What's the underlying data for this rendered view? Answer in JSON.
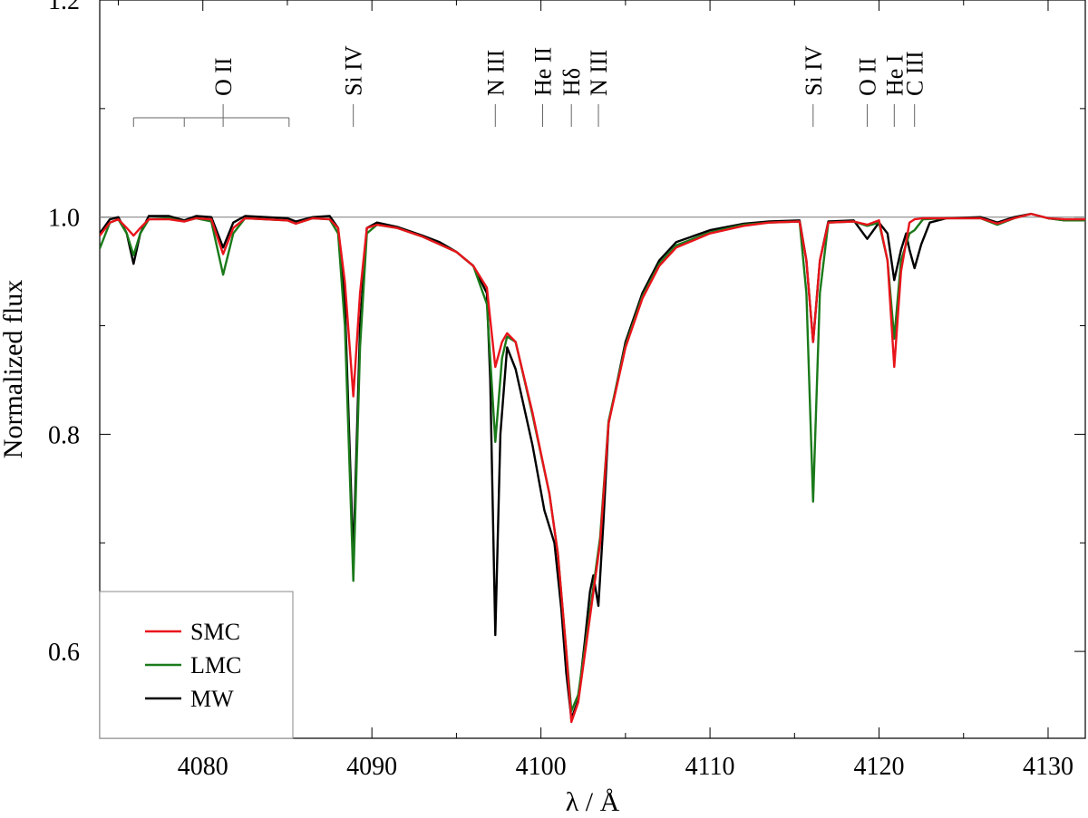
{
  "chart_data": {
    "type": "line",
    "title": "",
    "xlabel": "λ / Å",
    "ylabel": "Normalized flux",
    "xlim": [
      4073.9,
      4132.2
    ],
    "ylim": [
      0.52,
      1.2
    ],
    "xticks": [
      4080,
      4090,
      4100,
      4110,
      4120,
      4130
    ],
    "xtick_labels": [
      "4080",
      "4090",
      "4100",
      "4110",
      "4120",
      "4130"
    ],
    "yticks": [
      0.6,
      0.8,
      1.0,
      1.2
    ],
    "ytick_labels": [
      "0.6",
      "0.8",
      "1.0",
      "1.2"
    ],
    "reference_line": 1.0,
    "grid": false,
    "legend_position": "bottom-left",
    "line_labels": [
      {
        "text": "O II",
        "x": [
          4075.9,
          4078.9,
          4081.2,
          4085.1
        ],
        "group": true
      },
      {
        "text": "Si IV",
        "x": [
          4088.9
        ]
      },
      {
        "text": "N III",
        "x": [
          4097.3
        ]
      },
      {
        "text": "He II",
        "x": [
          4100.1
        ]
      },
      {
        "text": "Hδ",
        "x": [
          4101.8
        ]
      },
      {
        "text": "N III",
        "x": [
          4103.4
        ]
      },
      {
        "text": "Si IV",
        "x": [
          4116.1
        ]
      },
      {
        "text": "O II",
        "x": [
          4119.3
        ]
      },
      {
        "text": "He I",
        "x": [
          4120.9
        ]
      },
      {
        "text": "C III",
        "x": [
          4122.1
        ]
      }
    ],
    "series": [
      {
        "name": "SMC",
        "color": "#e8141b",
        "x": [
          4073.9,
          4074.5,
          4075.0,
          4075.5,
          4075.9,
          4076.3,
          4076.8,
          4078.0,
          4078.9,
          4079.6,
          4080.5,
          4081.2,
          4081.8,
          4082.5,
          4085.0,
          4085.5,
          4086.5,
          4087.5,
          4088.0,
          4088.4,
          4088.9,
          4089.3,
          4089.7,
          4090.3,
          4091.5,
          4093.0,
          4094.0,
          4095.0,
          4096.0,
          4096.8,
          4097.3,
          4097.7,
          4098.0,
          4098.5,
          4099.5,
          4100.5,
          4101.0,
          4101.5,
          4101.8,
          4102.2,
          4102.8,
          4103.5,
          4104.0,
          4105.0,
          4106.0,
          4107.0,
          4108.0,
          4110.0,
          4112.0,
          4113.5,
          4115.3,
          4115.7,
          4116.1,
          4116.5,
          4117.0,
          4118.5,
          4119.3,
          4120.0,
          4120.5,
          4120.9,
          4121.3,
          4121.8,
          4122.1,
          4122.6,
          4124.0,
          4126.0,
          4127.0,
          4128.0,
          4129.0,
          4130.0,
          4131.0,
          4132.2
        ],
        "values": [
          0.983,
          0.995,
          0.998,
          0.99,
          0.983,
          0.99,
          0.998,
          0.998,
          0.996,
          0.999,
          0.998,
          0.966,
          0.99,
          0.999,
          0.997,
          0.994,
          0.999,
          0.998,
          0.99,
          0.94,
          0.835,
          0.93,
          0.99,
          0.993,
          0.99,
          0.982,
          0.975,
          0.968,
          0.955,
          0.935,
          0.862,
          0.885,
          0.893,
          0.885,
          0.82,
          0.745,
          0.69,
          0.6,
          0.535,
          0.553,
          0.62,
          0.7,
          0.81,
          0.88,
          0.925,
          0.955,
          0.972,
          0.985,
          0.992,
          0.995,
          0.996,
          0.96,
          0.885,
          0.96,
          0.995,
          0.996,
          0.993,
          0.997,
          0.96,
          0.862,
          0.95,
          0.995,
          0.998,
          0.999,
          0.999,
          0.999,
          0.994,
          0.999,
          1.003,
          0.999,
          0.998,
          0.998
        ]
      },
      {
        "name": "LMC",
        "color": "#1a7a1a",
        "x": [
          4073.9,
          4074.5,
          4075.0,
          4075.5,
          4075.9,
          4076.3,
          4076.8,
          4078.0,
          4078.9,
          4079.6,
          4080.5,
          4081.2,
          4081.8,
          4082.5,
          4085.0,
          4085.5,
          4086.5,
          4087.5,
          4088.0,
          4088.4,
          4088.9,
          4089.3,
          4089.7,
          4090.3,
          4091.5,
          4093.0,
          4094.0,
          4095.0,
          4096.0,
          4096.8,
          4097.3,
          4097.7,
          4098.0,
          4098.5,
          4099.5,
          4100.5,
          4101.0,
          4101.5,
          4101.8,
          4102.2,
          4102.8,
          4103.5,
          4104.0,
          4105.0,
          4106.0,
          4107.0,
          4108.0,
          4110.0,
          4112.0,
          4113.5,
          4115.3,
          4115.7,
          4116.1,
          4116.5,
          4117.0,
          4118.5,
          4119.3,
          4120.0,
          4120.5,
          4120.9,
          4121.3,
          4121.8,
          4122.1,
          4122.6,
          4124.0,
          4126.0,
          4127.0,
          4128.0,
          4129.0,
          4130.0,
          4131.0,
          4132.2
        ],
        "values": [
          0.971,
          0.995,
          0.998,
          0.985,
          0.965,
          0.985,
          0.998,
          0.999,
          0.996,
          0.999,
          0.996,
          0.947,
          0.985,
          0.999,
          0.997,
          0.994,
          0.999,
          0.998,
          0.985,
          0.9,
          0.665,
          0.88,
          0.985,
          0.993,
          0.99,
          0.982,
          0.975,
          0.968,
          0.955,
          0.92,
          0.793,
          0.87,
          0.89,
          0.885,
          0.818,
          0.745,
          0.69,
          0.6,
          0.545,
          0.56,
          0.625,
          0.705,
          0.812,
          0.882,
          0.927,
          0.957,
          0.974,
          0.986,
          0.993,
          0.995,
          0.996,
          0.93,
          0.738,
          0.93,
          0.995,
          0.996,
          0.992,
          0.995,
          0.96,
          0.888,
          0.96,
          0.985,
          0.988,
          0.998,
          0.999,
          0.999,
          0.993,
          0.999,
          1.003,
          0.999,
          0.997,
          0.997
        ]
      },
      {
        "name": "MW",
        "color": "#000000",
        "x": [
          4073.9,
          4074.5,
          4075.0,
          4075.5,
          4075.9,
          4076.3,
          4076.8,
          4078.0,
          4078.9,
          4079.6,
          4080.5,
          4081.2,
          4081.8,
          4082.5,
          4085.0,
          4085.5,
          4086.5,
          4087.5,
          4088.0,
          4088.4,
          4088.9,
          4089.3,
          4089.7,
          4090.3,
          4091.5,
          4093.0,
          4094.0,
          4095.0,
          4096.0,
          4096.8,
          4097.0,
          4097.3,
          4097.6,
          4098.0,
          4098.5,
          4099.5,
          4100.2,
          4100.8,
          4101.2,
          4101.5,
          4101.8,
          4102.2,
          4102.6,
          4102.9,
          4103.1,
          4103.4,
          4103.7,
          4104.0,
          4105.0,
          4106.0,
          4107.0,
          4108.0,
          4110.0,
          4112.0,
          4113.5,
          4115.3,
          4115.7,
          4116.1,
          4116.5,
          4117.0,
          4118.5,
          4119.3,
          4120.0,
          4120.5,
          4120.9,
          4121.3,
          4121.6,
          4121.8,
          4122.1,
          4122.5,
          4123.0,
          4124.0,
          4126.0,
          4127.0,
          4128.0,
          4129.0,
          4130.0,
          4131.0,
          4132.2
        ],
        "values": [
          0.985,
          0.998,
          1.0,
          0.985,
          0.957,
          0.985,
          1.001,
          1.001,
          0.997,
          1.001,
          1.0,
          0.972,
          0.995,
          1.001,
          0.999,
          0.996,
          1.0,
          1.001,
          0.99,
          0.92,
          0.685,
          0.9,
          0.99,
          0.995,
          0.991,
          0.983,
          0.977,
          0.968,
          0.955,
          0.93,
          0.85,
          0.615,
          0.8,
          0.88,
          0.86,
          0.79,
          0.73,
          0.7,
          0.64,
          0.58,
          0.538,
          0.555,
          0.61,
          0.655,
          0.67,
          0.642,
          0.72,
          0.81,
          0.885,
          0.93,
          0.96,
          0.977,
          0.988,
          0.994,
          0.996,
          0.997,
          0.96,
          0.885,
          0.96,
          0.996,
          0.997,
          0.98,
          0.995,
          0.985,
          0.942,
          0.97,
          0.985,
          0.97,
          0.953,
          0.975,
          0.995,
          0.999,
          1.0,
          0.995,
          1.0,
          1.003,
          0.999,
          0.997,
          0.997
        ]
      }
    ]
  }
}
